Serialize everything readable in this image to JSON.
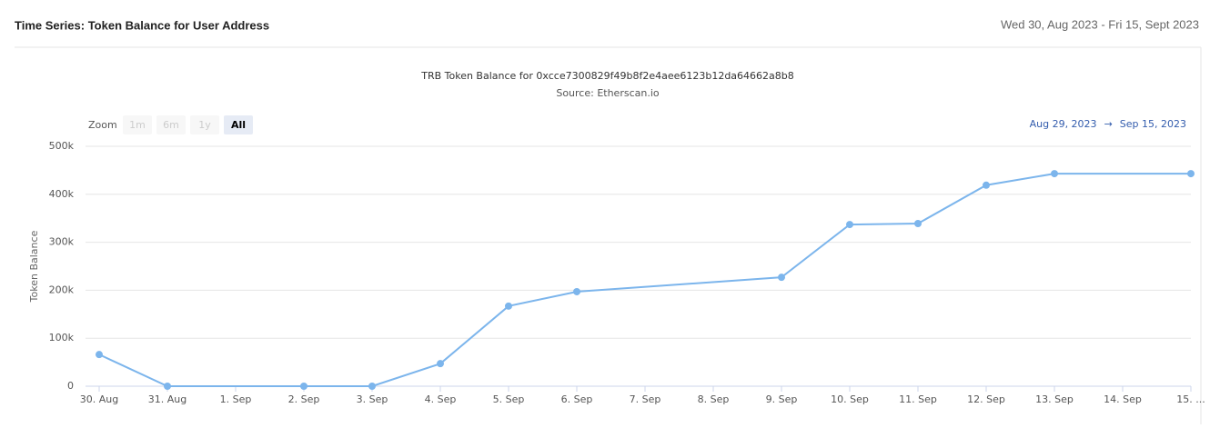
{
  "header": {
    "title": "Time Series: Token Balance for User Address",
    "date_range": "Wed 30, Aug 2023 - Fri 15, Sept 2023"
  },
  "zoom": {
    "label": "Zoom",
    "buttons": [
      "1m",
      "6m",
      "1y",
      "All"
    ],
    "selected": 3
  },
  "range": {
    "from": "Aug 29, 2023",
    "arrow": "→",
    "to": "Sep 15, 2023"
  },
  "chart_data": {
    "type": "line",
    "title": "TRB Token Balance for 0xcce7300829f49b8f2e4aee6123b12da64662a8b8",
    "subtitle": "Source: Etherscan.io",
    "y_label": "Token Balance",
    "categories": [
      "30. Aug",
      "31. Aug",
      "1. Sep",
      "2. Sep",
      "3. Sep",
      "4. Sep",
      "5. Sep",
      "6. Sep",
      "7. Sep",
      "8. Sep",
      "9. Sep",
      "10. Sep",
      "11. Sep",
      "12. Sep",
      "13. Sep",
      "14. Sep",
      "15. ..."
    ],
    "x": [
      "30. Aug",
      "31. Aug",
      "2. Sep",
      "3. Sep",
      "4. Sep",
      "5. Sep",
      "6. Sep",
      "9. Sep",
      "10. Sep",
      "11. Sep",
      "12. Sep",
      "13. Sep",
      "15. ..."
    ],
    "series": [
      {
        "name": "TRB Token Balance",
        "color": "#7cb5ec",
        "values": [
          66000,
          0,
          0,
          0,
          47000,
          167000,
          197000,
          227000,
          337000,
          339000,
          419000,
          443000,
          443000
        ]
      }
    ],
    "ylim": [
      0,
      500000
    ],
    "yticks": [
      0,
      {
        "value": 100000,
        "label": "100k"
      },
      {
        "value": 200000,
        "label": "200k"
      },
      {
        "value": 300000,
        "label": "300k"
      },
      {
        "value": 400000,
        "label": "400k"
      },
      {
        "value": 500000,
        "label": "500k"
      }
    ],
    "grid": true
  }
}
